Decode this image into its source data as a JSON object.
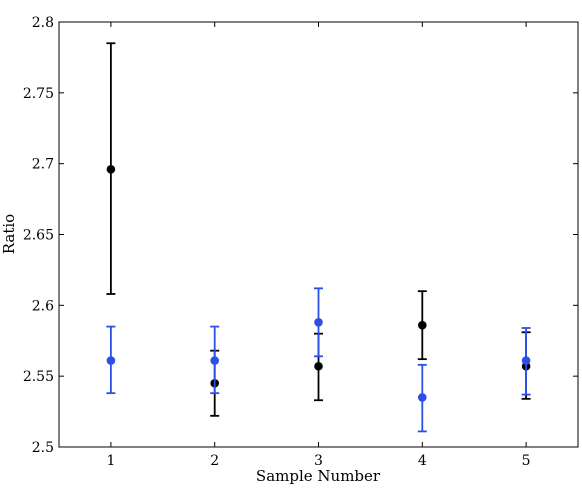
{
  "chart_data": {
    "type": "scatter",
    "title": "",
    "xlabel": "Sample Number",
    "ylabel": "Ratio",
    "xlim": [
      0.5,
      5.5
    ],
    "ylim": [
      2.5,
      2.8
    ],
    "xticks": [
      1,
      2,
      3,
      4,
      5
    ],
    "xtick_labels": [
      "1",
      "2",
      "3",
      "4",
      "5"
    ],
    "yticks": [
      2.5,
      2.55,
      2.6,
      2.65,
      2.7,
      2.75,
      2.8
    ],
    "ytick_labels": [
      "2.5",
      "2.55",
      "2.6",
      "2.65",
      "2.7",
      "2.75",
      "2.8"
    ],
    "grid": false,
    "series": [
      {
        "color": "#000000",
        "x": [
          1,
          2,
          3,
          4,
          5
        ],
        "y": [
          2.696,
          2.545,
          2.557,
          2.586,
          2.557
        ],
        "err_low": [
          2.608,
          2.522,
          2.533,
          2.562,
          2.534
        ],
        "err_high": [
          2.785,
          2.568,
          2.58,
          2.61,
          2.581
        ]
      },
      {
        "color": "#2c4fe8",
        "x": [
          1,
          2,
          3,
          4,
          5
        ],
        "y": [
          2.561,
          2.561,
          2.588,
          2.535,
          2.561
        ],
        "err_low": [
          2.538,
          2.538,
          2.564,
          2.511,
          2.537
        ],
        "err_high": [
          2.585,
          2.585,
          2.612,
          2.558,
          2.584
        ]
      }
    ]
  }
}
